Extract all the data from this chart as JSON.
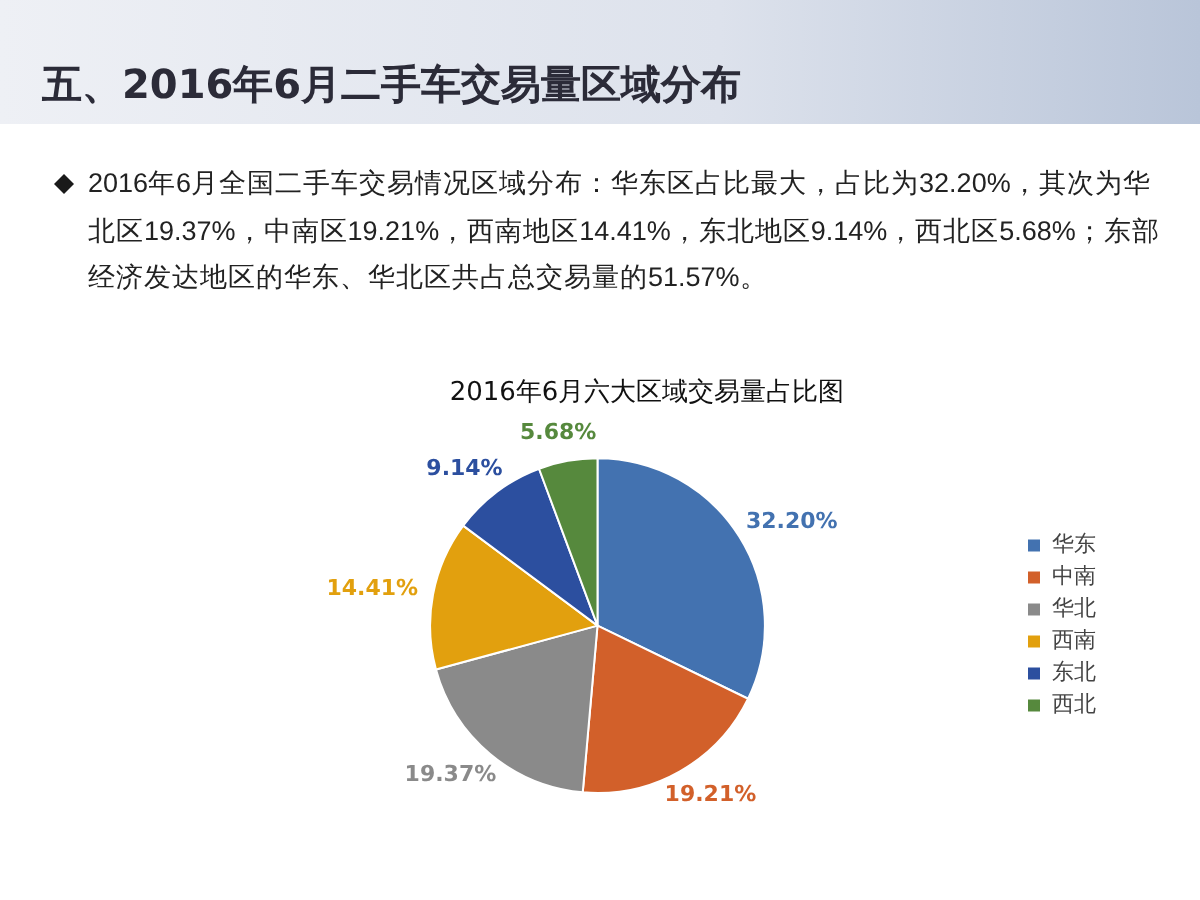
{
  "chart_data": {
    "type": "pie",
    "title": "五、2016年6月二手车交易量区域分布",
    "subtitle": "2016年6月六大区域交易量占比图",
    "annotations": [
      "2016年6月全国二手车交易情况区域分布：华东区占比最大，占比为32.20%，其次为华北区19.37%，中南区19.21%，西南地区14.41%，东北地区9.14%，西北区5.68%；东部经济发达地区的华东、华北区共占总交易量的51.57%。"
    ],
    "categories": [
      "华东",
      "中南",
      "华北",
      "西南",
      "东北",
      "西北"
    ],
    "values": [
      32.2,
      19.21,
      19.37,
      14.41,
      9.14,
      5.68
    ],
    "colors": [
      "#4372b0",
      "#d2602a",
      "#8a8a8a",
      "#e2a00e",
      "#2c4f9f",
      "#56893d"
    ],
    "value_labels": [
      "32.20%",
      "19.21%",
      "19.37%",
      "14.41%",
      "9.14%",
      "5.68%"
    ],
    "legend": "right"
  }
}
